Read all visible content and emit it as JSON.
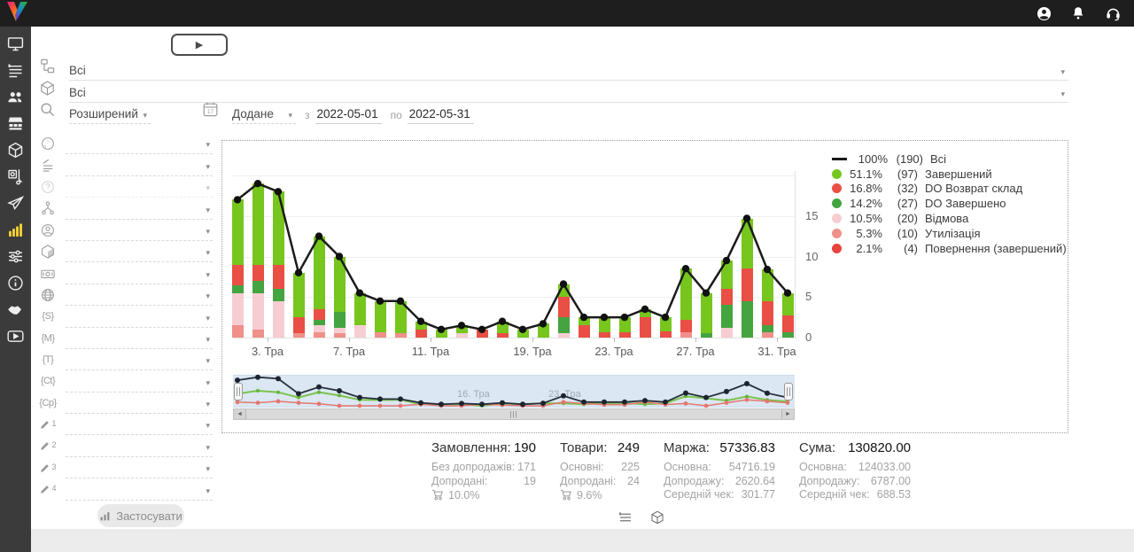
{
  "icons": {
    "caret": "▾",
    "play": "▶",
    "scroll_left": "◄",
    "scroll_right": "►",
    "grip": "|||",
    "calendar_day": "17"
  },
  "header_filters": {
    "category_value": "Всі",
    "product_value": "Всі",
    "search_mode": "Розширений",
    "date_field": "Додане",
    "from_label": "з",
    "from_value": "2022-05-01",
    "to_label": "по",
    "to_value": "2022-05-31"
  },
  "sidebar_filters": {
    "special": [
      "{S}",
      "{M}",
      "{T}",
      "{Ct}",
      "{Cp}"
    ],
    "pencil_numbers": [
      "1",
      "2",
      "3",
      "4"
    ],
    "apply_label": "Застосувати"
  },
  "chart_data": {
    "type": "bar",
    "subtype": "stacked-bars-with-total-line",
    "x_tick_labels": [
      "3. Тра",
      "7. Тра",
      "11. Тра",
      "19. Тра",
      "23. Тра",
      "27. Тра",
      "31. Тра"
    ],
    "y_ticks": [
      0,
      5,
      10,
      15
    ],
    "y_grid": [
      0,
      5,
      10,
      15,
      20
    ],
    "ylim": [
      0,
      20
    ],
    "stack_order": [
      "utilization",
      "refusal",
      "do_completed",
      "do_return",
      "completed"
    ],
    "colors": {
      "line": "#1b1b1b",
      "completed": "#76c61e",
      "do_return": "#e94f44",
      "do_completed": "#44a440",
      "refusal": "#f6cdd2",
      "utilization": "#f0908a",
      "return_completed": "#e8433c",
      "brush_bg": "#dbe7f3"
    },
    "legend": [
      {
        "swatch": "line",
        "color": "#1b1b1b",
        "pct": "100%",
        "count": "(190)",
        "label": "Всі"
      },
      {
        "swatch": "dot",
        "color": "#76c61e",
        "pct": "51.1%",
        "count": "(97)",
        "label": "Завершений"
      },
      {
        "swatch": "dot",
        "color": "#e94f44",
        "pct": "16.8%",
        "count": "(32)",
        "label": "DO Возврат склад"
      },
      {
        "swatch": "dot",
        "color": "#44a440",
        "pct": "14.2%",
        "count": "(27)",
        "label": "DO Завершено"
      },
      {
        "swatch": "dot",
        "color": "#f6cdd2",
        "pct": "10.5%",
        "count": "(20)",
        "label": "Відмова"
      },
      {
        "swatch": "dot",
        "color": "#f0908a",
        "pct": "5.3%",
        "count": "(10)",
        "label": "Утилізація"
      },
      {
        "swatch": "dot",
        "color": "#e8433c",
        "pct": "2.1%",
        "count": "(4)",
        "label": "Повернення (завершений)"
      }
    ],
    "days": [
      {
        "day": "1. Тра",
        "total": 17,
        "segments": {
          "utilization": 1.5,
          "refusal": 4,
          "do_completed": 1,
          "do_return": 2.5,
          "completed": 8
        }
      },
      {
        "day": "2. Тра",
        "total": 19,
        "segments": {
          "utilization": 1,
          "refusal": 4.5,
          "do_completed": 1.5,
          "do_return": 2,
          "completed": 10
        }
      },
      {
        "day": "3. Тра",
        "total": 18,
        "segments": {
          "refusal": 4.5,
          "do_completed": 1.5,
          "do_return": 3,
          "completed": 9
        }
      },
      {
        "day": "4. Тра",
        "total": 8,
        "segments": {
          "utilization": 0.5,
          "do_return": 2,
          "completed": 5.5
        }
      },
      {
        "day": "5. Тра",
        "total": 12.5,
        "segments": {
          "utilization": 0.7,
          "refusal": 0.8,
          "do_completed": 0.7,
          "do_return": 1.3,
          "completed": 9
        }
      },
      {
        "day": "6. Тра",
        "total": 10,
        "segments": {
          "utilization": 0.6,
          "refusal": 0.6,
          "do_completed": 2,
          "completed": 6.8
        }
      },
      {
        "day": "7. Тра",
        "total": 5.5,
        "segments": {
          "refusal": 1.5,
          "completed": 4
        }
      },
      {
        "day": "8. Тра",
        "total": 4.5,
        "segments": {
          "utilization": 0.7,
          "completed": 3.8
        }
      },
      {
        "day": "9. Тра",
        "total": 4.5,
        "segments": {
          "utilization": 0.5,
          "completed": 4
        }
      },
      {
        "day": "10. Тра",
        "total": 2,
        "segments": {
          "do_return": 1,
          "completed": 1
        }
      },
      {
        "day": "11. Тра",
        "total": 1,
        "segments": {
          "completed": 1
        }
      },
      {
        "day": "12. Тра",
        "total": 1.5,
        "segments": {
          "refusal": 0.5,
          "completed": 1
        }
      },
      {
        "day": "13. Тра",
        "total": 1,
        "segments": {
          "do_return": 1
        }
      },
      {
        "day": "16. Тра",
        "total": 2,
        "segments": {
          "do_return": 0.5,
          "completed": 1.5
        }
      },
      {
        "day": "18. Тра",
        "total": 1,
        "segments": {
          "completed": 1
        }
      },
      {
        "day": "19. Тра",
        "total": 1.7,
        "segments": {
          "completed": 1.7
        }
      },
      {
        "day": "20. Тра",
        "total": 6.6,
        "segments": {
          "refusal": 0.5,
          "do_completed": 2,
          "do_return": 2.5,
          "completed": 1.6
        }
      },
      {
        "day": "21. Тра",
        "total": 2.5,
        "segments": {
          "do_return": 1.5,
          "completed": 1
        }
      },
      {
        "day": "22. Тра",
        "total": 2.5,
        "segments": {
          "do_return": 0.7,
          "completed": 1.8
        }
      },
      {
        "day": "23. Тра",
        "total": 2.5,
        "segments": {
          "do_return": 0.7,
          "completed": 1.8
        }
      },
      {
        "day": "24. Тра",
        "total": 3.5,
        "segments": {
          "do_return": 2.5,
          "completed": 1
        }
      },
      {
        "day": "25. Тра",
        "total": 2.5,
        "segments": {
          "do_return": 0.8,
          "completed": 1.7
        }
      },
      {
        "day": "26. Тра",
        "total": 8.5,
        "segments": {
          "utilization": 0.7,
          "do_return": 1.5,
          "completed": 6.3
        }
      },
      {
        "day": "27. Тра",
        "total": 5.5,
        "segments": {
          "do_completed": 0.5,
          "completed": 5
        }
      },
      {
        "day": "28. Тра",
        "total": 9.5,
        "segments": {
          "refusal": 1.2,
          "do_completed": 2.8,
          "do_return": 2,
          "completed": 3.5
        }
      },
      {
        "day": "29. Тра",
        "total": 14.7,
        "segments": {
          "do_completed": 4.5,
          "do_return": 4,
          "completed": 6.2
        }
      },
      {
        "day": "30. Тра",
        "total": 8.4,
        "segments": {
          "utilization": 0.7,
          "do_completed": 0.8,
          "do_return": 3,
          "completed": 3.9
        }
      },
      {
        "day": "31. Тра",
        "total": 5.5,
        "segments": {
          "do_completed": 0.7,
          "do_return": 2,
          "completed": 2.8
        }
      }
    ],
    "brush_labels": [
      {
        "text": "16. Тра",
        "x": 253
      },
      {
        "text": "23. Тра",
        "x": 356
      }
    ]
  },
  "stats": {
    "orders": {
      "title": "Замовлення:",
      "value": "190",
      "rows": [
        [
          "Без допродажів:",
          "171"
        ],
        [
          "Допродані:",
          "19"
        ]
      ],
      "cart_pct": "10.0%"
    },
    "goods": {
      "title": "Товари:",
      "value": "249",
      "rows": [
        [
          "Основні:",
          "225"
        ],
        [
          "Допродані:",
          "24"
        ]
      ],
      "cart_pct": "9.6%"
    },
    "margin": {
      "title": "Маржа:",
      "value": "57336.83",
      "rows": [
        [
          "Основна:",
          "54716.19"
        ],
        [
          "Допродажу:",
          "2620.64"
        ],
        [
          "Середній чек:",
          "301.77"
        ]
      ]
    },
    "sum": {
      "title": "Сума:",
      "value": "130820.00",
      "rows": [
        [
          "Основна:",
          "124033.00"
        ],
        [
          "Допродажу:",
          "6787.00"
        ],
        [
          "Середній чек:",
          "688.53"
        ]
      ]
    }
  }
}
